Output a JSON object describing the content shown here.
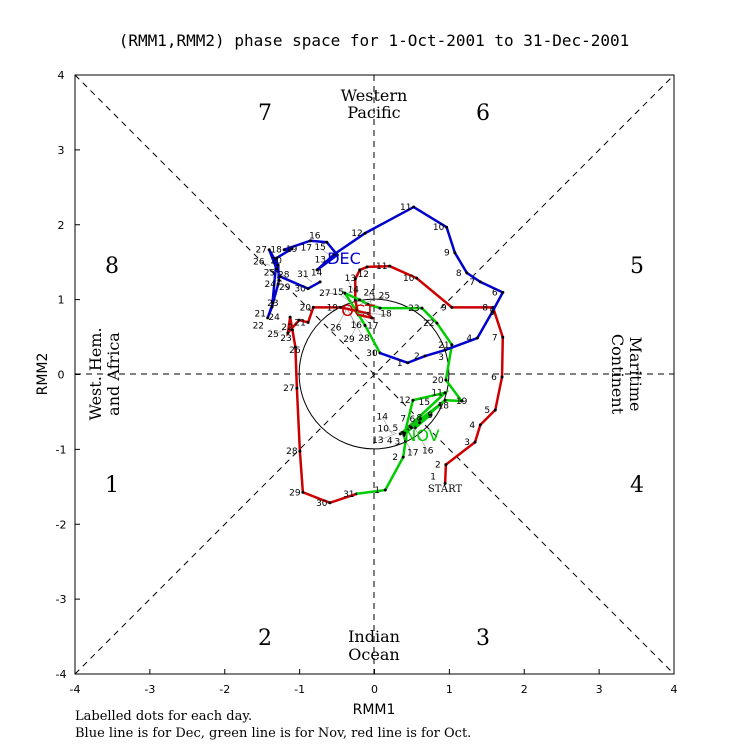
{
  "chart_data": {
    "type": "line",
    "title": "(RMM1,RMM2) phase space for  1-Oct-2001 to 31-Dec-2001",
    "xlabel": "RMM1",
    "ylabel": "RMM2",
    "xlim": [
      -4,
      4
    ],
    "ylim": [
      -4,
      4
    ],
    "xticks": [
      "-4",
      "-3",
      "-2",
      "-1",
      "0",
      "1",
      "2",
      "3",
      "4"
    ],
    "yticks": [
      "-4",
      "-3",
      "-2",
      "-1",
      "0",
      "1",
      "2",
      "3",
      "4"
    ],
    "phases": [
      "1",
      "2",
      "3",
      "4",
      "5",
      "6",
      "7",
      "8"
    ],
    "regions": {
      "top": [
        "Western",
        "Pacific"
      ],
      "bottom": [
        "Indian",
        "Ocean"
      ],
      "left": [
        "West. Hem.",
        "and Africa"
      ],
      "right": [
        "Maritime",
        "Continent"
      ]
    },
    "start_label": "START",
    "footer": [
      "Labelled dots for each day.",
      "Blue line is for Dec, green line is for Nov, red line is for Oct."
    ],
    "series": [
      {
        "name": "OCT",
        "color": "#cc0000",
        "points": [
          [
            0.95,
            -1.46
          ],
          [
            0.96,
            -1.21
          ],
          [
            1.35,
            -0.91
          ],
          [
            1.42,
            -0.68
          ],
          [
            1.62,
            -0.48
          ],
          [
            1.71,
            -0.04
          ],
          [
            1.72,
            0.49
          ],
          [
            1.59,
            0.89
          ],
          [
            1.04,
            0.89
          ],
          [
            0.57,
            1.28
          ],
          [
            0.21,
            1.44
          ],
          [
            -0.09,
            1.43
          ],
          [
            -0.19,
            1.39
          ],
          [
            -0.25,
            1.27
          ],
          [
            -0.25,
            0.99
          ],
          [
            -0.21,
            0.79
          ],
          [
            -0.03,
            0.75
          ],
          [
            -0.08,
            0.81
          ],
          [
            -0.45,
            0.89
          ],
          [
            -0.81,
            0.89
          ],
          [
            -0.88,
            0.69
          ],
          [
            -1.0,
            0.72
          ],
          [
            -1.15,
            0.55
          ],
          [
            -1.12,
            0.76
          ],
          [
            -1.09,
            0.59
          ],
          [
            -1.05,
            0.36
          ],
          [
            -1.03,
            -0.19
          ],
          [
            -0.99,
            -1.03
          ],
          [
            -0.95,
            -1.58
          ],
          [
            -0.59,
            -1.72
          ],
          [
            -0.23,
            -1.6
          ]
        ]
      },
      {
        "name": "NOV",
        "color": "#00cc00",
        "points": [
          [
            0.15,
            -1.55
          ],
          [
            0.39,
            -1.11
          ],
          [
            0.42,
            -0.9
          ],
          [
            0.4,
            -0.82
          ],
          [
            0.5,
            -0.72
          ],
          [
            0.62,
            -0.6
          ],
          [
            0.48,
            -0.7
          ],
          [
            0.55,
            -0.72
          ],
          [
            0.75,
            -0.55
          ],
          [
            0.38,
            -0.78
          ],
          [
            0.95,
            -0.25
          ],
          [
            0.52,
            -0.35
          ],
          [
            0.41,
            -0.79
          ],
          [
            0.35,
            -0.8
          ],
          [
            0.88,
            -0.41
          ],
          [
            0.61,
            -0.65
          ],
          [
            0.45,
            -0.75
          ],
          [
            0.95,
            -0.35
          ],
          [
            1.17,
            -0.36
          ],
          [
            0.96,
            -0.08
          ],
          [
            1.04,
            0.39
          ],
          [
            0.84,
            0.68
          ],
          [
            0.64,
            0.88
          ],
          [
            0.08,
            0.88
          ],
          [
            -0.08,
            0.93
          ],
          [
            -0.19,
            0.99
          ],
          [
            -0.39,
            1.08
          ],
          [
            -0.24,
            0.85
          ],
          [
            -0.12,
            0.65
          ],
          [
            0.08,
            0.28
          ]
        ]
      },
      {
        "name": "DEC",
        "color": "#0000cc",
        "points": [
          [
            0.45,
            0.15
          ],
          [
            0.68,
            0.24
          ],
          [
            0.95,
            0.32
          ],
          [
            1.38,
            0.48
          ],
          [
            1.58,
            0.83
          ],
          [
            1.72,
            1.09
          ],
          [
            1.42,
            1.23
          ],
          [
            1.24,
            1.35
          ],
          [
            1.08,
            1.62
          ],
          [
            0.97,
            1.96
          ],
          [
            0.53,
            2.23
          ],
          [
            -0.12,
            1.88
          ],
          [
            -0.53,
            1.6
          ],
          [
            -0.76,
            1.39
          ],
          [
            -0.49,
            1.59
          ],
          [
            -0.63,
            1.76
          ],
          [
            -0.85,
            1.78
          ],
          [
            -1.2,
            1.66
          ],
          [
            -1.1,
            1.67
          ],
          [
            -1.3,
            1.55
          ],
          [
            -1.36,
            0.9
          ],
          [
            -1.42,
            0.75
          ],
          [
            -1.35,
            0.95
          ],
          [
            -1.28,
            1.2
          ],
          [
            -1.27,
            1.25
          ],
          [
            -1.28,
            1.45
          ],
          [
            -1.4,
            1.66
          ],
          [
            -1.3,
            1.4
          ],
          [
            -1.25,
            1.3
          ],
          [
            -0.88,
            1.14
          ],
          [
            -0.72,
            1.23
          ]
        ]
      }
    ]
  }
}
